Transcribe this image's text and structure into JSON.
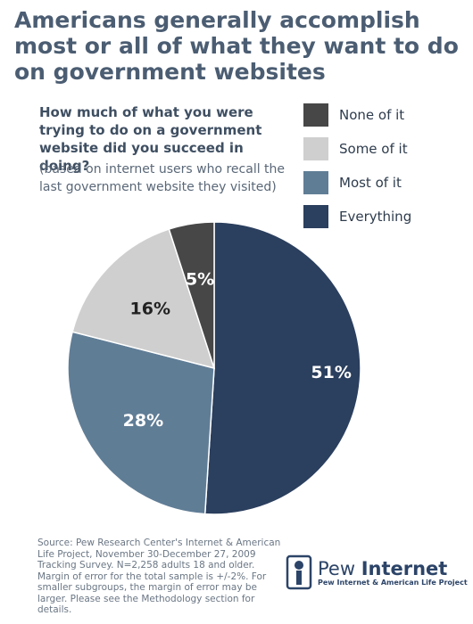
{
  "title": "Americans generally accomplish most or all of what they want to do on government websites",
  "question": "How much of what you were trying to do on a government website did you succeed in doing?",
  "note": "(based on internet users who recall the last government website they visited)",
  "source": "Source: Pew Research Center's Internet & American Life Project, November 30-December 27, 2009 Tracking Survey. N=2,258 adults 18 and older. Margin of error for the total sample is +/-2%. For smaller subgroups, the margin of error may be larger. Please see the Methodology section for details.",
  "logo": {
    "prefix": "Pew ",
    "brand": "Internet",
    "sub": "Pew Internet & American Life Project"
  },
  "chart_data": {
    "type": "pie",
    "categories": [
      "None of it",
      "Some of it",
      "Most of it",
      "Everything"
    ],
    "values": [
      5,
      16,
      28,
      51
    ],
    "labels": [
      "5%",
      "16%",
      "28%",
      "51%"
    ],
    "colors": [
      "#474747",
      "#cfcfcf",
      "#607d96",
      "#2b3f5e"
    ],
    "label_colors": [
      "#ffffff",
      "#222222",
      "#ffffff",
      "#ffffff"
    ],
    "legend_position": "top-right"
  }
}
